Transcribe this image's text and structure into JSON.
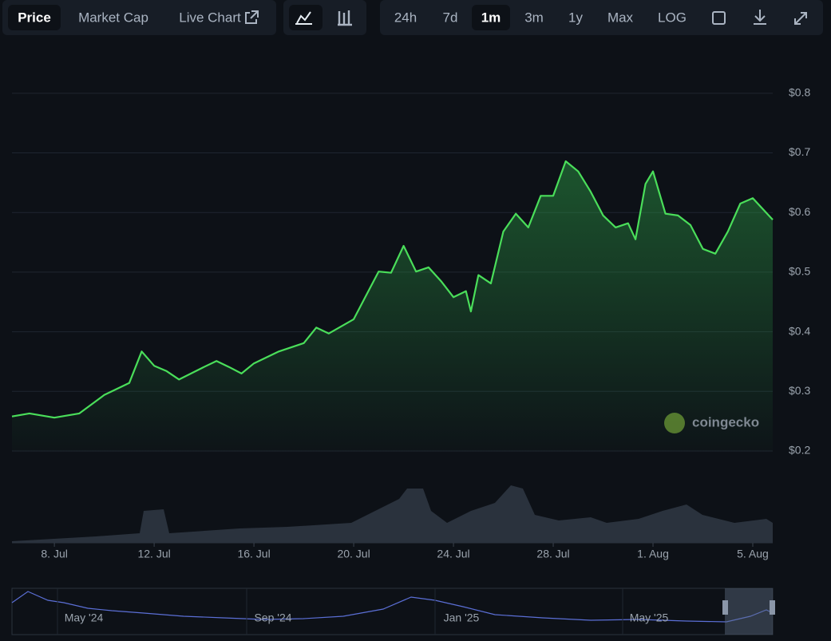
{
  "toolbar": {
    "tabs": [
      "Price",
      "Market Cap",
      "Live Chart"
    ],
    "ranges": [
      "24h",
      "7d",
      "1m",
      "3m",
      "1y",
      "Max",
      "LOG"
    ]
  },
  "chart_data": {
    "type": "line",
    "x": [
      6.3,
      7,
      8,
      9,
      10,
      11,
      11.5,
      12,
      12.5,
      13,
      14,
      14.5,
      15,
      15.5,
      16,
      17,
      18,
      18.5,
      19,
      20,
      20.5,
      21,
      21.5,
      22,
      22.5,
      23,
      23.5,
      24,
      24.5,
      24.7,
      25,
      25.5,
      26,
      26.5,
      27,
      27.5,
      28,
      28.5,
      29,
      29.5,
      30,
      30.5,
      31,
      31.3,
      31.7,
      32,
      32.5,
      33,
      33.5,
      34,
      34.5,
      35,
      35.5,
      36,
      36.8
    ],
    "series": [
      {
        "color": "#4ade5a",
        "values": [
          0.258,
          0.263,
          0.256,
          0.263,
          0.294,
          0.314,
          0.367,
          0.343,
          0.334,
          0.32,
          0.341,
          0.351,
          0.341,
          0.33,
          0.347,
          0.367,
          0.381,
          0.407,
          0.397,
          0.421,
          0.461,
          0.501,
          0.499,
          0.544,
          0.501,
          0.508,
          0.485,
          0.458,
          0.468,
          0.434,
          0.495,
          0.481,
          0.568,
          0.598,
          0.575,
          0.628,
          0.628,
          0.686,
          0.669,
          0.635,
          0.595,
          0.575,
          0.582,
          0.555,
          0.648,
          0.669,
          0.598,
          0.595,
          0.579,
          0.539,
          0.531,
          0.568,
          0.615,
          0.624,
          0.588
        ]
      }
    ],
    "xlim": [
      6.3,
      36.8
    ],
    "xticks": [
      {
        "value": 8,
        "label": "8. Jul"
      },
      {
        "value": 12,
        "label": "12. Jul"
      },
      {
        "value": 16,
        "label": "16. Jul"
      },
      {
        "value": 20,
        "label": "20. Jul"
      },
      {
        "value": 24,
        "label": "24. Jul"
      },
      {
        "value": 28,
        "label": "28. Jul"
      },
      {
        "value": 32,
        "label": "1. Aug"
      },
      {
        "value": 36,
        "label": "5. Aug"
      }
    ],
    "ylim": [
      0.2,
      0.86
    ],
    "yticks": [
      {
        "value": 0.2,
        "label": "$0.2"
      },
      {
        "value": 0.3,
        "label": "$0.3"
      },
      {
        "value": 0.4,
        "label": "$0.4"
      },
      {
        "value": 0.5,
        "label": "$0.5"
      },
      {
        "value": 0.6,
        "label": "$0.6"
      },
      {
        "value": 0.7,
        "label": "$0.7"
      },
      {
        "value": 0.8,
        "label": "$0.8"
      }
    ],
    "grid": true,
    "watermark": "coingecko"
  },
  "navigator": {
    "labels": [
      "May '24",
      "Sep '24",
      "Jan '25",
      "May '25"
    ]
  }
}
